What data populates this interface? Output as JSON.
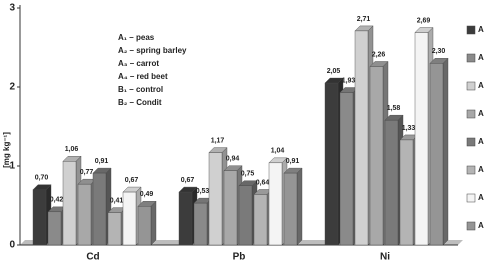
{
  "chart_data": {
    "type": "bar3d",
    "y_label": "[mg kg⁻¹]",
    "annotations": [
      "A₁ – peas",
      "A₂ – spring barley",
      "A₃ – carrot",
      "A₄ – red beet",
      "B₁ – control",
      "B₂ – Condit"
    ],
    "categories": [
      "Cd",
      "Pb",
      "Ni"
    ],
    "ylim": [
      0,
      3
    ],
    "yticks": [
      0,
      1,
      2,
      3
    ],
    "grid": false,
    "legend": "right",
    "series": [
      {
        "name": "A",
        "color": "#3c3c3c",
        "values": [
          0.7,
          0.67,
          2.05
        ],
        "value_labels": [
          "0,70",
          "0,67",
          "2,05"
        ]
      },
      {
        "name": "A",
        "color": "#8a8a8a",
        "values": [
          0.42,
          0.53,
          1.93
        ],
        "value_labels": [
          "0,42",
          "0,53",
          "1,93"
        ]
      },
      {
        "name": "A",
        "color": "#d0d0d0",
        "values": [
          1.06,
          1.17,
          2.71
        ],
        "value_labels": [
          "1,06",
          "1,17",
          "2,71"
        ]
      },
      {
        "name": "A",
        "color": "#a8a8a8",
        "values": [
          0.77,
          0.94,
          2.26
        ],
        "value_labels": [
          "0,77",
          "0,94",
          "2,26"
        ]
      },
      {
        "name": "A",
        "color": "#7a7a7a",
        "values": [
          0.91,
          0.75,
          1.58
        ],
        "value_labels": [
          "0,91",
          "0,75",
          "1,58"
        ]
      },
      {
        "name": "A",
        "color": "#b4b4b4",
        "values": [
          0.41,
          0.64,
          1.33
        ],
        "value_labels": [
          "0,41",
          "0,64",
          "1,33"
        ]
      },
      {
        "name": "A",
        "color": "#f4f4f4",
        "values": [
          0.67,
          1.04,
          2.69
        ],
        "value_labels": [
          "0,67",
          "1,04",
          "2,69"
        ]
      },
      {
        "name": "A",
        "color": "#959595",
        "values": [
          0.49,
          0.91,
          2.3
        ],
        "value_labels": [
          "0,49",
          "0,91",
          "2,30"
        ]
      }
    ]
  }
}
